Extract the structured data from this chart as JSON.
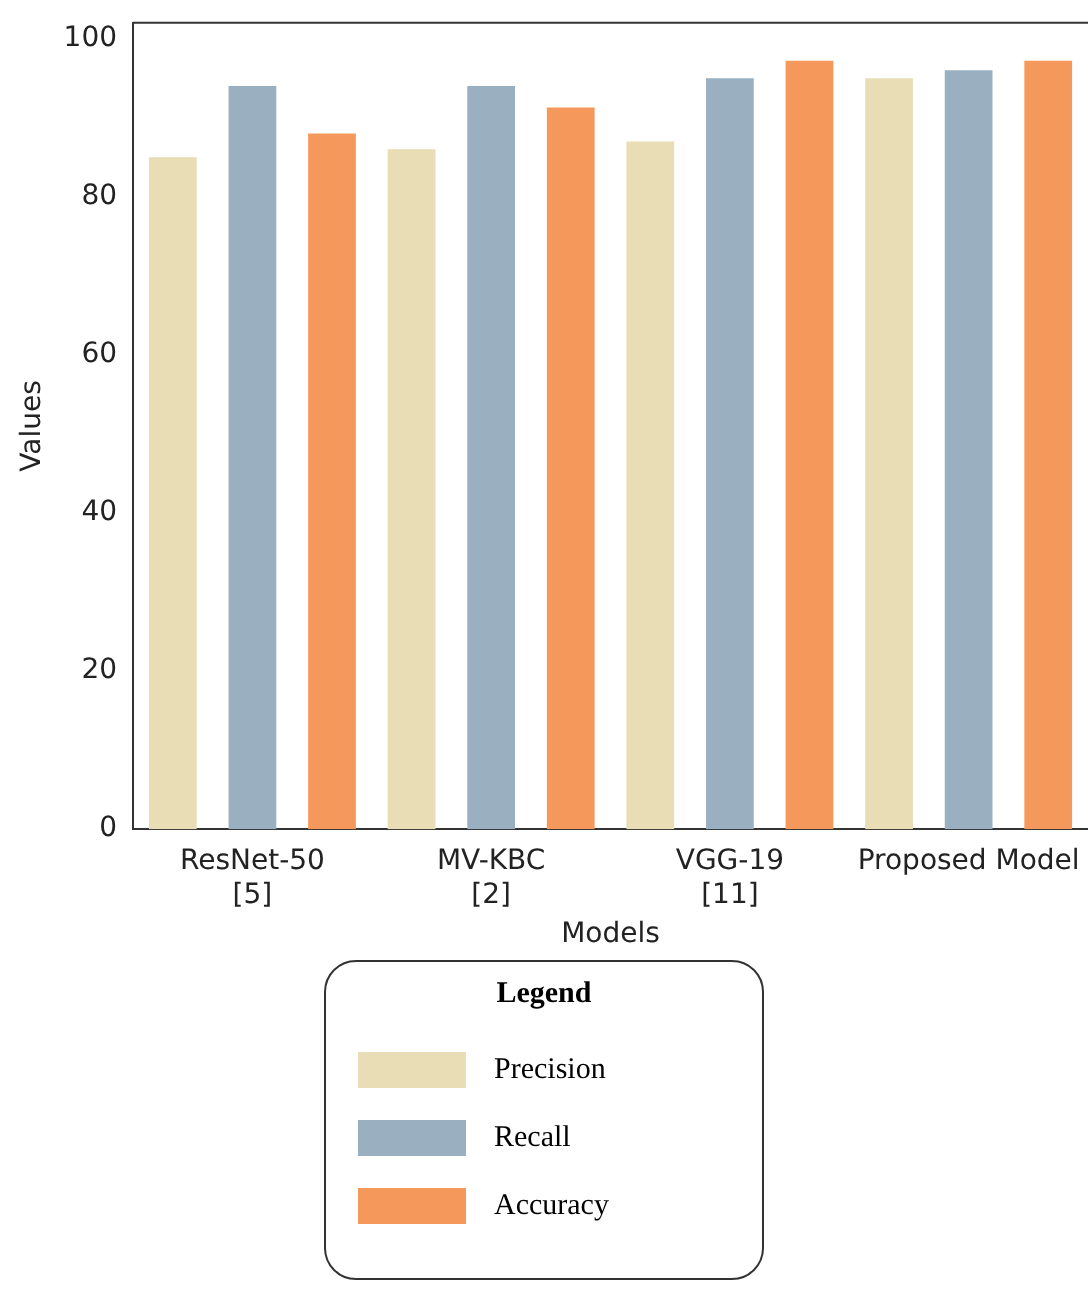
{
  "chart_data": {
    "type": "bar",
    "xlabel": "Models",
    "ylabel": "Values",
    "legend_title": "Legend",
    "legend": "bottom",
    "grid": false,
    "categories": [
      "ResNet-50\n[5]",
      "MV-KBC\n[2]",
      "VGG-19\n[11]",
      "Proposed Model"
    ],
    "ylim": [
      0,
      102
    ],
    "yticks": [
      0,
      20,
      40,
      60,
      80,
      100
    ],
    "series": [
      {
        "name": "Precision",
        "color": "#e8ddb5",
        "values": [
          85,
          86,
          87,
          95
        ]
      },
      {
        "name": "Recall",
        "color": "#9aafc0",
        "values": [
          94,
          94,
          95,
          96
        ]
      },
      {
        "name": "Accuracy",
        "color": "#f4995b",
        "values": [
          88,
          91.3,
          97.2,
          97.2
        ]
      }
    ]
  }
}
